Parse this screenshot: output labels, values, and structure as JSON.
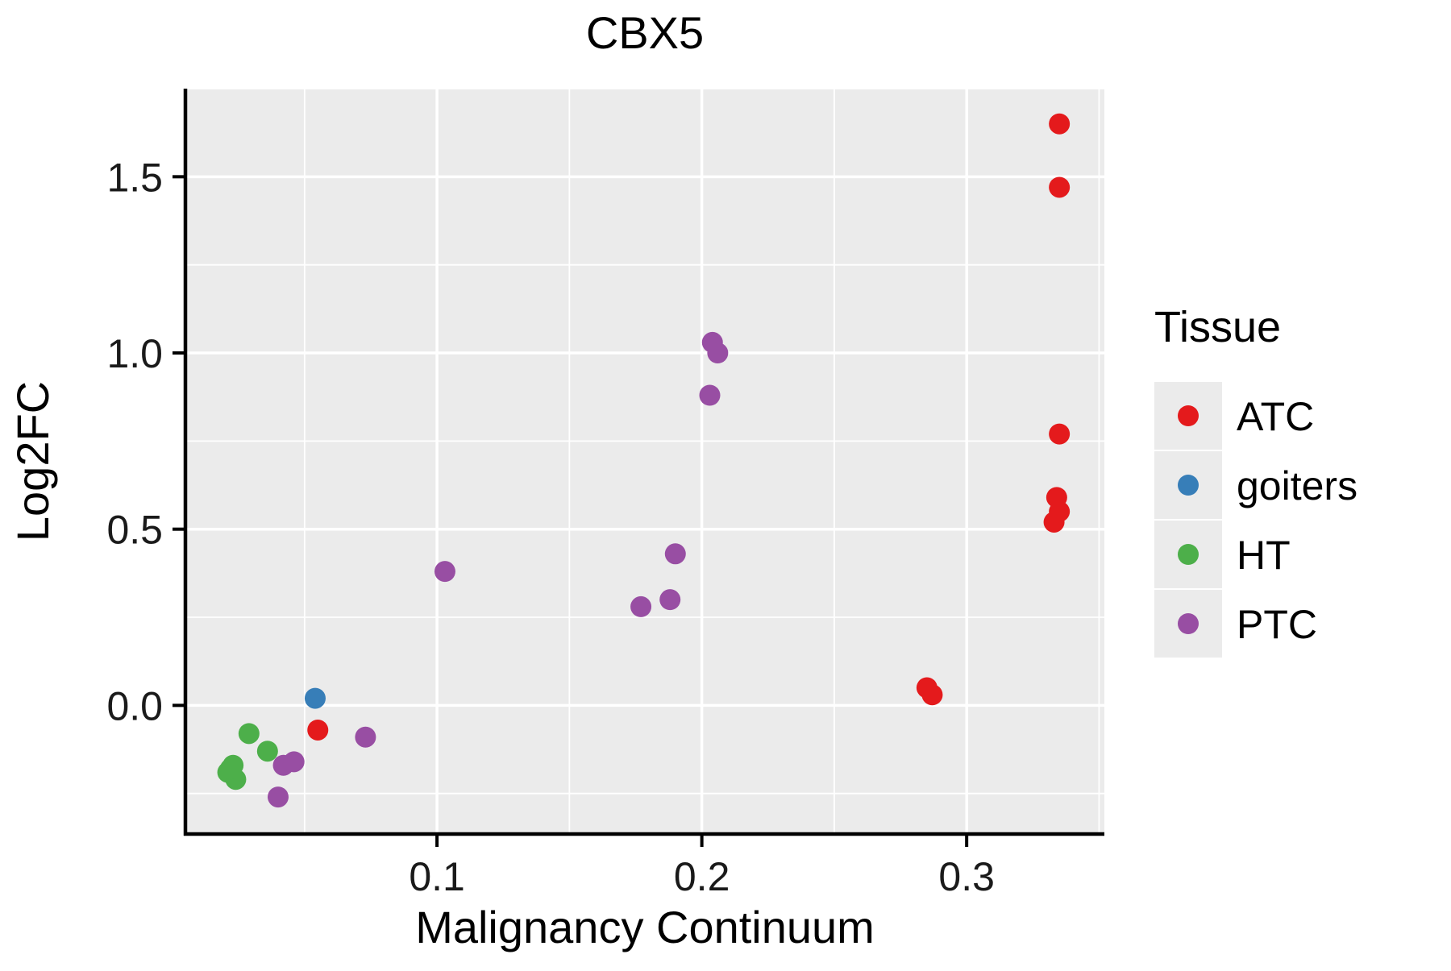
{
  "chart_data": {
    "type": "scatter",
    "title": "CBX5",
    "xlabel": "Malignancy Continuum",
    "ylabel": "Log2FC",
    "legend_title": "Tissue",
    "legend_position": "right",
    "xlim": [
      0.005,
      0.352
    ],
    "ylim": [
      -0.365,
      1.75
    ],
    "x_ticks": [
      0.1,
      0.2,
      0.3
    ],
    "x_tick_labels": [
      "0.1",
      "0.2",
      "0.3"
    ],
    "y_ticks": [
      0.0,
      0.5,
      1.0,
      1.5
    ],
    "y_tick_labels": [
      "0.0",
      "0.5",
      "1.0",
      "1.5"
    ],
    "x_minor_ticks": [
      0.05,
      0.15,
      0.25,
      0.35
    ],
    "y_minor_ticks": [
      -0.25,
      0.25,
      0.75,
      1.25,
      1.75
    ],
    "panel_background": "#EBEBEB",
    "grid_color": "#FFFFFF",
    "grid": true,
    "series": [
      {
        "name": "ATC",
        "color": "#E41A1C",
        "points": [
          [
            0.335,
            1.65
          ],
          [
            0.335,
            1.47
          ],
          [
            0.335,
            0.77
          ],
          [
            0.334,
            0.59
          ],
          [
            0.335,
            0.55
          ],
          [
            0.333,
            0.52
          ],
          [
            0.285,
            0.05
          ],
          [
            0.287,
            0.03
          ],
          [
            0.055,
            -0.07
          ]
        ]
      },
      {
        "name": "goiters",
        "color": "#377EB8",
        "points": [
          [
            0.054,
            0.02
          ]
        ]
      },
      {
        "name": "HT",
        "color": "#4DAF4A",
        "points": [
          [
            0.029,
            -0.08
          ],
          [
            0.036,
            -0.13
          ],
          [
            0.023,
            -0.17
          ],
          [
            0.021,
            -0.19
          ],
          [
            0.024,
            -0.21
          ],
          [
            0.022,
            -0.18
          ]
        ]
      },
      {
        "name": "PTC",
        "color": "#984EA3",
        "points": [
          [
            0.204,
            1.03
          ],
          [
            0.206,
            1.0
          ],
          [
            0.203,
            0.88
          ],
          [
            0.103,
            0.38
          ],
          [
            0.19,
            0.43
          ],
          [
            0.188,
            0.3
          ],
          [
            0.177,
            0.28
          ],
          [
            0.073,
            -0.09
          ],
          [
            0.042,
            -0.17
          ],
          [
            0.046,
            -0.16
          ],
          [
            0.04,
            -0.26
          ]
        ]
      }
    ]
  }
}
